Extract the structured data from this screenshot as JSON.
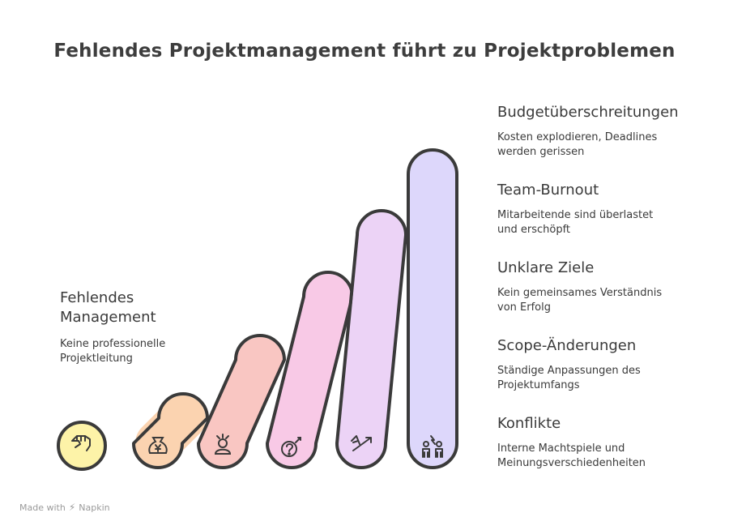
{
  "title": "Fehlendes Projektmanagement führt zu Projektproblemen",
  "source": {
    "title": "Fehlendes\nManagement",
    "description": "Keine professionelle\nProjektleitung",
    "icon": "fist-hand-icon",
    "color": "#fdf3a8"
  },
  "problems": [
    {
      "title": "Budgetüberschreitungen",
      "description": "Kosten explodieren, Deadlines\nwerden gerissen",
      "icon": "money-bag-icon",
      "color": "#fbd3b0"
    },
    {
      "title": "Team-Burnout",
      "description": "Mitarbeitende sind überlastet\nund erschöpft",
      "icon": "stressed-person-icon",
      "color": "#f9c6c2"
    },
    {
      "title": "Unklare Ziele",
      "description": "Kein gemeinsames Verständnis\nvon Erfolg",
      "icon": "question-target-icon",
      "color": "#f8c9e6"
    },
    {
      "title": "Scope-Änderungen",
      "description": "Ständige Anpassungen des\nProjektumfangs",
      "icon": "diverging-arrows-icon",
      "color": "#ecd3f6"
    },
    {
      "title": "Konflikte",
      "description": "Interne Machtspiele und\nMeinungsverschiedenheiten",
      "icon": "conflict-people-icon",
      "color": "#ddd7fb"
    }
  ],
  "footer": {
    "made_with": "Made with",
    "brand": "Napkin"
  }
}
